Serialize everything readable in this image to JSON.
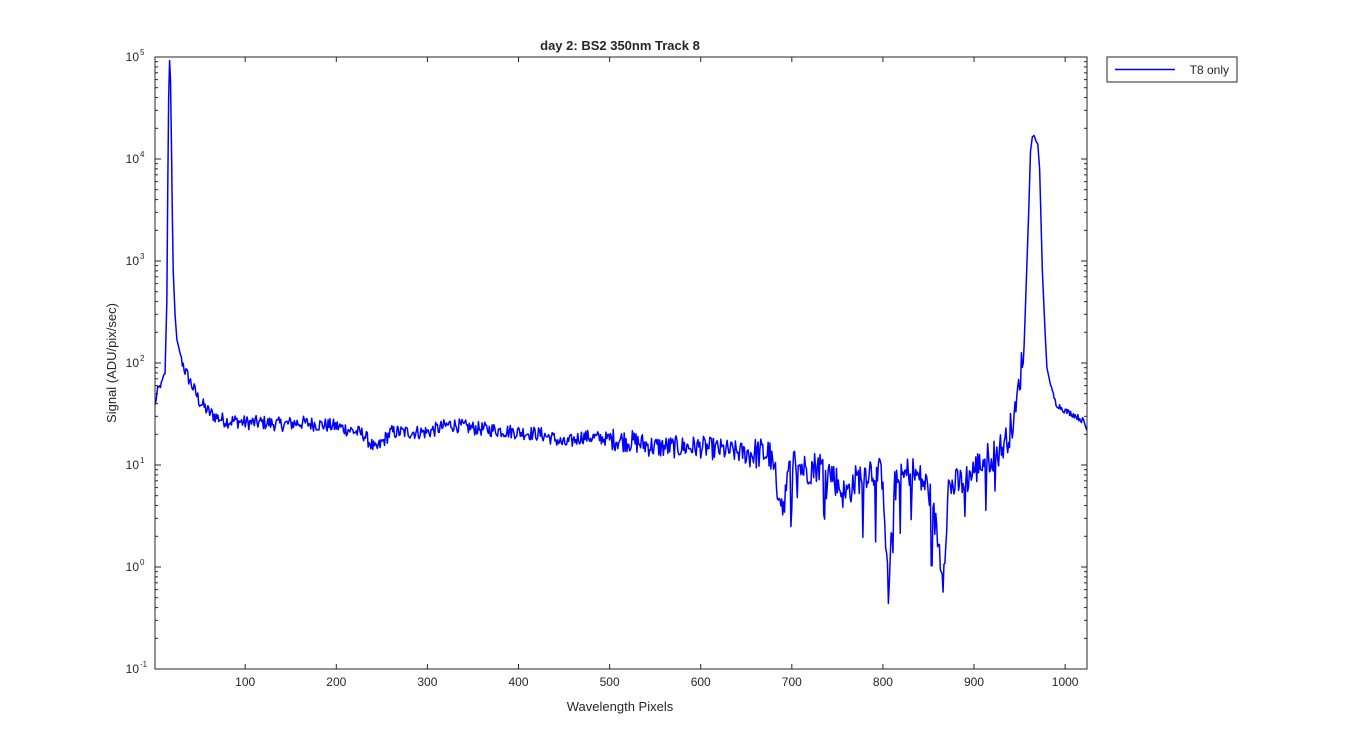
{
  "chart_data": {
    "type": "line",
    "title": "day 2: BS2  350nm  Track 8",
    "xlabel": "Wavelength Pixels",
    "ylabel": "Signal (ADU/pix/sec)",
    "xlim": [
      1,
      1024
    ],
    "ylim": [
      0.1,
      100000
    ],
    "yscale": "log",
    "x_ticks": [
      100,
      200,
      300,
      400,
      500,
      600,
      700,
      800,
      900,
      1000
    ],
    "y_ticks": [
      {
        "value": 0.1,
        "base": "10",
        "exp": "-1"
      },
      {
        "value": 1,
        "base": "10",
        "exp": "0"
      },
      {
        "value": 10,
        "base": "10",
        "exp": "1"
      },
      {
        "value": 100,
        "base": "10",
        "exp": "2"
      },
      {
        "value": 1000,
        "base": "10",
        "exp": "3"
      },
      {
        "value": 10000,
        "base": "10",
        "exp": "4"
      },
      {
        "value": 100000,
        "base": "10",
        "exp": "5"
      }
    ],
    "grid": false,
    "legend_position": "outside-top-right",
    "series": [
      {
        "name": "T8 only",
        "color": "#0000ff",
        "x": [
          1,
          4,
          8,
          12,
          14,
          15,
          16,
          17,
          18,
          19,
          20,
          21,
          23,
          25,
          30,
          35,
          40,
          50,
          60,
          70,
          80,
          90,
          100,
          120,
          140,
          160,
          180,
          200,
          215,
          230,
          243,
          260,
          280,
          300,
          325,
          350,
          375,
          400,
          425,
          440,
          450,
          470,
          500,
          525,
          550,
          575,
          600,
          625,
          650,
          675,
          690,
          700,
          715,
          730,
          745,
          758,
          770,
          785,
          800,
          806,
          812,
          830,
          850,
          860,
          866,
          872,
          890,
          910,
          925,
          935,
          945,
          955,
          960,
          962,
          964,
          966,
          968,
          970,
          972,
          975,
          978,
          980,
          985,
          990,
          1000,
          1010,
          1020,
          1024
        ],
        "y": [
          38,
          55,
          62,
          80,
          400,
          5000,
          40000,
          92000,
          60000,
          15000,
          3000,
          800,
          300,
          170,
          110,
          80,
          65,
          42,
          33,
          29,
          27,
          27,
          26,
          26,
          25,
          26,
          25,
          24,
          22,
          20,
          14,
          21,
          21,
          21,
          25,
          23,
          22,
          21,
          20,
          18,
          16,
          19,
          18,
          17,
          15,
          15,
          15,
          14,
          13,
          13,
          4,
          11,
          9,
          10,
          8,
          5,
          7,
          9,
          8,
          0.5,
          6,
          9,
          6,
          2,
          0.8,
          6,
          7,
          11,
          13,
          17,
          30,
          150,
          3000,
          12000,
          16500,
          17000,
          15000,
          14000,
          8000,
          800,
          200,
          90,
          55,
          40,
          34,
          31,
          27,
          22
        ]
      }
    ]
  }
}
